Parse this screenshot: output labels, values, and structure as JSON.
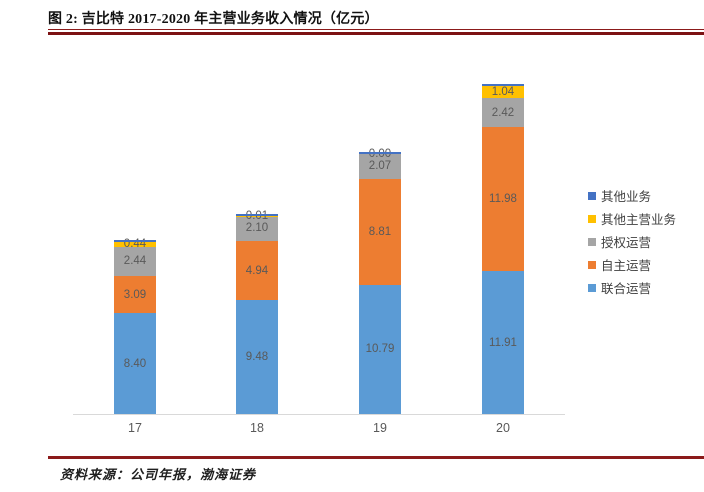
{
  "figure": {
    "title": "图 2: 吉比特 2017-2020 年主营业务收入情况（亿元）",
    "source": "资料来源：公司年报，渤海证券",
    "accent_line_color": "#8b1a1a"
  },
  "chart_data": {
    "type": "bar",
    "subtype": "stacked-vertical",
    "title": "吉比特 2017-2020 年主营业务收入情况",
    "unit": "亿元",
    "categories": [
      "17",
      "18",
      "19",
      "20"
    ],
    "series": [
      {
        "name": "联合运营",
        "color": "#5b9bd5",
        "values": [
          8.4,
          9.48,
          10.79,
          11.91
        ],
        "labels_shown": true
      },
      {
        "name": "自主运营",
        "color": "#ed7d31",
        "values": [
          3.09,
          4.94,
          8.81,
          11.98
        ],
        "labels_shown": true
      },
      {
        "name": "授权运营",
        "color": "#a5a5a5",
        "values": [
          2.44,
          2.1,
          2.07,
          2.42
        ],
        "labels_shown": true
      },
      {
        "name": "其他主营业务",
        "color": "#ffc000",
        "values": [
          0.44,
          0.01,
          0.0,
          1.04
        ],
        "labels_shown": true
      },
      {
        "name": "其他业务",
        "color": "#4472c4",
        "values": [
          0.15,
          0.15,
          0.15,
          0.15
        ],
        "labels_shown": false
      }
    ],
    "legend": [
      {
        "label": "其他业务",
        "color": "#4472c4"
      },
      {
        "label": "其他主营业务",
        "color": "#ffc000"
      },
      {
        "label": "授权运营",
        "color": "#a5a5a5"
      },
      {
        "label": "自主运营",
        "color": "#ed7d31"
      },
      {
        "label": "联合运营",
        "color": "#5b9bd5"
      }
    ],
    "legend_position": "right",
    "value_label_color": "#595959",
    "axis": {
      "baseline_color": "#d9d9d9",
      "tick_label_color": "#595959",
      "y_axis_shown": false
    },
    "grid": false,
    "ylim": [
      0,
      29.5
    ]
  }
}
